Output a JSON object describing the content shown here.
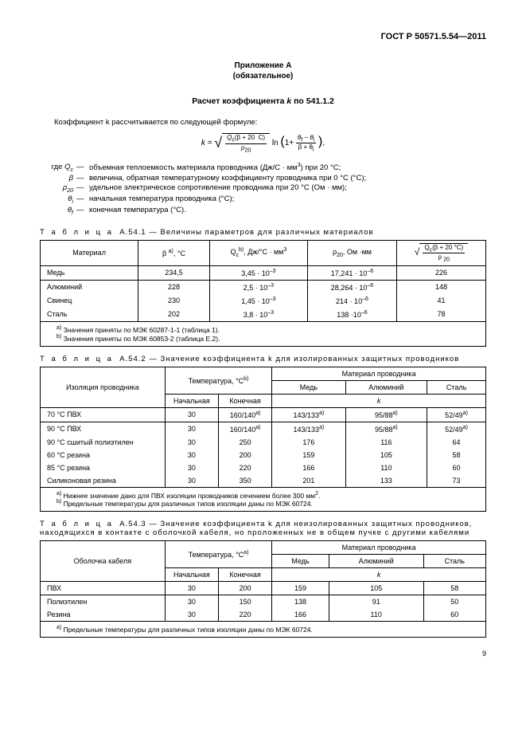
{
  "header": {
    "doc_number": "ГОСТ Р 50571.5.54—2011"
  },
  "appendix": {
    "label": "Приложение A",
    "mandatory": "(обязательное)"
  },
  "title": {
    "prefix": "Расчет коэффициента ",
    "k": "k",
    "suffix": " по 541.1.2"
  },
  "intro": "Коэффициент k рассчитывается по следующей формуле:",
  "formula": {
    "lhs": "k =",
    "num_a": "Q",
    "num_a_sub": "c",
    "num_paren": "(β + 20  C)",
    "den": "ρ",
    "den_sub": "20",
    "ln": "ln",
    "one": "1+",
    "tnum_a": "θ",
    "tnum_a_sub": "f",
    "tnum_minus": "−",
    "tnum_b": "θ",
    "tnum_b_sub": "i",
    "tden": "β + θ",
    "tden_sub": "i"
  },
  "where": "где",
  "defs": [
    {
      "sym": "Q<sub>c</sub>",
      "text": "объемная теплоемкость материала проводника (Дж/С · мм<sup>3</sup>) при 20 °С;"
    },
    {
      "sym": "β",
      "text": "величина, обратная температурному коэффициенту проводника при 0 °С (°С);"
    },
    {
      "sym": "ρ<sub>20</sub>",
      "text": "удельное электрическое сопротивление проводника при 20 °С (Ом · мм);"
    },
    {
      "sym": "θ<sub>i</sub>",
      "text": "начальная температура проводника (°С);"
    },
    {
      "sym": "θ<sub>f</sub>",
      "text": "конечная температура (°С)."
    }
  ],
  "table1": {
    "caption_label": "Т а б л и ц а",
    "caption": "А.54.1 — Величины параметров для различных материалов",
    "head": {
      "material": "Материал",
      "beta": "β <sup>a)</sup>, °С",
      "qc": "Q<sub>c</sub><sup>b)</sup>, Дж/°С · мм<sup>3</sup>",
      "rho": "ρ<sub>20</sub>, Ом ·мм",
      "k": "Q<sub>c</sub>(β + 20 °C)",
      "k_den": "ρ <sub>20</sub>"
    },
    "rows": [
      {
        "m": "Медь",
        "b": "234,5",
        "q": "3,45 · 10<sup>–3</sup>",
        "r": "17,241 · 10<sup>–6</sup>",
        "k": "226"
      },
      {
        "m": "Алюминий",
        "b": "228",
        "q": "2,5 · 10<sup>–3</sup>",
        "r": "28,264 · 10<sup>–6</sup>",
        "k": "148"
      },
      {
        "m": "Свинец",
        "b": "230",
        "q": "1,45 · 10<sup>–3</sup>",
        "r": "214 · 10<sup>–6</sup>",
        "k": "41"
      },
      {
        "m": "Сталь",
        "b": "202",
        "q": "3,8 · 10<sup>–3</sup>",
        "r": "138 ·10<sup>–6</sup>",
        "k": "78"
      }
    ],
    "foot_a": "<sup>a)</sup> Значения приняты по МЭК 60287-1-1 (таблица 1).",
    "foot_b": "<sup>b)</sup> Значения приняты по МЭК 60853-2 (таблица Е.2)."
  },
  "table2": {
    "caption_label": "Т а б л и ц а",
    "caption": "А.54.2 — Значение коэффициента k для изолированных защитных проводников",
    "head": {
      "insul": "Изоляция проводника",
      "temp": "Температура, °С<sup>b)</sup>",
      "mat": "Материал проводника",
      "cu": "Медь",
      "al": "Алюминий",
      "st": "Сталь",
      "init": "Начальная",
      "final": "Конечная",
      "k": "k"
    },
    "rows": [
      {
        "n": "70 °С ПВХ",
        "i": "30",
        "f": "160/140<sup>a)</sup>",
        "cu": "143/133<sup>a)</sup>",
        "al": "95/88<sup>a)</sup>",
        "st": "52/49<sup>a)</sup>"
      },
      {
        "n": "90 °С ПВХ",
        "i": "30",
        "f": "160/140<sup>a)</sup>",
        "cu": "143/133<sup>a)</sup>",
        "al": "95/88<sup>a)</sup>",
        "st": "52/49<sup>a)</sup>"
      },
      {
        "n": "90 °С сшитый полиэтилен",
        "i": "30",
        "f": "250",
        "cu": "176",
        "al": "116",
        "st": "64"
      },
      {
        "n": "60 °С резина",
        "i": "30",
        "f": "200",
        "cu": "159",
        "al": "105",
        "st": "58"
      },
      {
        "n": "85 °С резина",
        "i": "30",
        "f": "220",
        "cu": "166",
        "al": "110",
        "st": "60"
      },
      {
        "n": "Силиконовая резина",
        "i": "30",
        "f": "350",
        "cu": "201",
        "al": "133",
        "st": "73"
      }
    ],
    "foot_a": "<sup>a)</sup> Нижнее значение дано для ПВХ изоляции проводников сечением более 300 мм<sup>2</sup>.",
    "foot_b": "<sup>b)</sup> Предельные температуры для различных типов изоляции даны по МЭК 60724."
  },
  "table3": {
    "caption_label": "Т а б л и ц а",
    "caption": "А.54.3 — Значение коэффициента k для неизолированных защитных проводников, находящихся в контакте с оболочкой кабеля, но проложенных не в общем пучке с другими кабелями",
    "head": {
      "sheath": "Оболочка кабеля",
      "temp": "Температура, °С<sup>a)</sup>",
      "mat": "Материал проводника",
      "cu": "Медь",
      "al": "Алюминий",
      "st": "Сталь",
      "init": "Начальная",
      "final": "Конечная",
      "k": "k"
    },
    "rows": [
      {
        "n": "ПВХ",
        "i": "30",
        "f": "200",
        "cu": "159",
        "al": "105",
        "st": "58"
      },
      {
        "n": "Полиэтилен",
        "i": "30",
        "f": "150",
        "cu": "138",
        "al": "91",
        "st": "50"
      },
      {
        "n": "Резина",
        "i": "30",
        "f": "220",
        "cu": "166",
        "al": "110",
        "st": "60"
      }
    ],
    "foot_a": "<sup>a)</sup> Предельные температуры для различных типов изоляции даны по МЭК 60724."
  },
  "pagenum": "9"
}
